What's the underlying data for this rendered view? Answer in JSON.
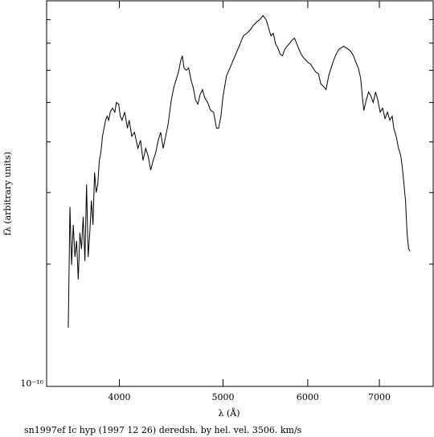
{
  "chart_data": {
    "type": "line",
    "xlabel": "λ (Å)",
    "ylabel": "fλ (arbitrary units)",
    "caption": "sn1997ef Ic hyp (1997 12 26) deredsh. by hel. vel.  3506. km/s",
    "xlog": true,
    "ylog": true,
    "xlim": [
      3420,
      7860
    ],
    "xticks": [
      4000,
      5000,
      6000,
      7000
    ],
    "ylim": [
      1e-16,
      8.9e-16
    ],
    "yticks": [
      {
        "value": 1e-16,
        "label": "10⁻¹⁶"
      }
    ],
    "yminorticks": [
      2e-16,
      3e-16,
      4e-16,
      5e-16,
      6e-16,
      7e-16,
      8e-16
    ],
    "color": "#000000",
    "x": [
      3583,
      3590,
      3596,
      3609,
      3622,
      3635,
      3648,
      3661,
      3674,
      3687,
      3700,
      3714,
      3727,
      3740,
      3753,
      3766,
      3779,
      3792,
      3805,
      3818,
      3831,
      3844,
      3857,
      3870,
      3883,
      3896,
      3909,
      3922,
      3941,
      3961,
      3974,
      3994,
      4008,
      4023,
      4046,
      4070,
      4085,
      4108,
      4132,
      4163,
      4186,
      4209,
      4233,
      4256,
      4279,
      4302,
      4326,
      4349,
      4372,
      4395,
      4419,
      4442,
      4473,
      4496,
      4519,
      4543,
      4566,
      4581,
      4597,
      4620,
      4643,
      4667,
      4690,
      4713,
      4736,
      4760,
      4783,
      4806,
      4837,
      4868,
      4899,
      4930,
      4953,
      4977,
      5000,
      5037,
      5075,
      5112,
      5150,
      5187,
      5224,
      5262,
      5299,
      5337,
      5374,
      5411,
      5449,
      5486,
      5514,
      5542,
      5570,
      5598,
      5626,
      5654,
      5682,
      5710,
      5738,
      5766,
      5804,
      5832,
      5860,
      5888,
      5916,
      5944,
      5972,
      6000,
      6034,
      6069,
      6103,
      6138,
      6172,
      6207,
      6241,
      6276,
      6310,
      6345,
      6379,
      6414,
      6448,
      6483,
      6517,
      6552,
      6586,
      6621,
      6655,
      6690,
      6724,
      6747,
      6770,
      6805,
      6839,
      6874,
      6908,
      6943,
      6977,
      7012,
      7049,
      7086,
      7123,
      7160,
      7196,
      7221,
      7258,
      7295,
      7332,
      7356,
      7381,
      7405,
      7430,
      7455,
      7480
    ],
    "values": [
      1.395e-16,
      1.991e-16,
      2.765e-16,
      1.991e-16,
      2.5e-16,
      2.084e-16,
      2.283e-16,
      1.834e-16,
      2.389e-16,
      2.181e-16,
      2.617e-16,
      2.036e-16,
      3.141e-16,
      2.084e-16,
      2.389e-16,
      2.868e-16,
      2.5e-16,
      3.363e-16,
      3.002e-16,
      3.141e-16,
      3.601e-16,
      3.769e-16,
      4.128e-16,
      4.321e-16,
      4.523e-16,
      4.627e-16,
      4.523e-16,
      4.734e-16,
      4.843e-16,
      4.734e-16,
      5e-16,
      4.955e-16,
      4.627e-16,
      4.523e-16,
      4.734e-16,
      4.321e-16,
      4.523e-16,
      4.128e-16,
      4.223e-16,
      3.856e-16,
      4.036e-16,
      3.601e-16,
      3.856e-16,
      3.687e-16,
      3.41e-16,
      3.601e-16,
      3.769e-16,
      4.036e-16,
      4.223e-16,
      3.856e-16,
      4.128e-16,
      4.42e-16,
      5.07e-16,
      5.43e-16,
      5.683e-16,
      5.946e-16,
      6.368e-16,
      6.515e-16,
      6.083e-16,
      6e-16,
      6.083e-16,
      5.683e-16,
      5.43e-16,
      5.07e-16,
      4.955e-16,
      5.235e-16,
      5.378e-16,
      5.14e-16,
      5e-16,
      4.778e-16,
      4.734e-16,
      4.321e-16,
      4.321e-16,
      4.627e-16,
      5.187e-16,
      5.813e-16,
      6.083e-16,
      6.368e-16,
      6.665e-16,
      6.975e-16,
      7.301e-16,
      7.401e-16,
      7.537e-16,
      7.745e-16,
      7.889e-16,
      7.998e-16,
      8.183e-16,
      7.998e-16,
      7.64e-16,
      7.301e-16,
      7.401e-16,
      6.975e-16,
      6.817e-16,
      6.575e-16,
      6.515e-16,
      6.755e-16,
      6.879e-16,
      6.975e-16,
      7.137e-16,
      7.202e-16,
      6.975e-16,
      6.755e-16,
      6.575e-16,
      6.455e-16,
      6.368e-16,
      6.281e-16,
      6.223e-16,
      6.083e-16,
      5.946e-16,
      5.893e-16,
      5.555e-16,
      5.479e-16,
      5.378e-16,
      5.813e-16,
      6.083e-16,
      6.368e-16,
      6.575e-16,
      6.755e-16,
      6.817e-16,
      6.879e-16,
      6.817e-16,
      6.755e-16,
      6.665e-16,
      6.515e-16,
      6.281e-16,
      6.083e-16,
      5.734e-16,
      5.187e-16,
      4.778e-16,
      5.07e-16,
      5.305e-16,
      5.187e-16,
      5e-16,
      5.305e-16,
      5.07e-16,
      4.734e-16,
      4.843e-16,
      4.565e-16,
      4.734e-16,
      4.523e-16,
      4.627e-16,
      4.321e-16,
      4.128e-16,
      3.856e-16,
      3.687e-16,
      3.441e-16,
      3.141e-16,
      2.868e-16,
      2.389e-16,
      2.181e-16,
      2.152e-16
    ]
  }
}
